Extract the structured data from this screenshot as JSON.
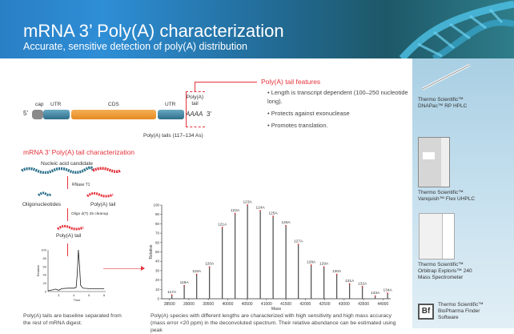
{
  "header": {
    "title": "mRNA 3’ Poly(A) characterization",
    "subtitle": "Accurate, sensitive detection of poly(A) distribution"
  },
  "mrna": {
    "five": "5'",
    "three": "3'",
    "cap": "cap",
    "utr1": "UTR",
    "cds": "CDS",
    "utr2": "UTR",
    "tail_label": "Poly(A) tail",
    "aaaa": "AAAA",
    "tails_caption": "Poly(A) tails (117–134 As)"
  },
  "features": {
    "title": "Poly(A) tail features",
    "items": [
      "Length is transcript dependent (100–250 nucleotide long).",
      "Protects against exonuclease",
      "Promotes translation."
    ]
  },
  "workflow": {
    "title": "mRNA 3’ Poly(A) tail characterization",
    "candidate": "Nucleic acid candidate",
    "rnase": "RNase T1",
    "oligos": "Oligonucleotides",
    "polya1": "Poly(A) tail",
    "cleanup": "Oligo d(T) 25 cleanup",
    "polya2": "Poly(A) tail",
    "caption": "Poly(A) tails are baseline separated from the rest of mRNA digest."
  },
  "chromatogram": {
    "xlabel": "Time",
    "ylabel": "Relative",
    "yticks": [
      0,
      20,
      40,
      60,
      80,
      100
    ],
    "xticks": [
      3,
      4,
      5,
      6
    ],
    "xlim": [
      2.3,
      6.1
    ],
    "ylim": [
      0,
      100
    ],
    "points": [
      [
        2.3,
        2
      ],
      [
        2.6,
        4
      ],
      [
        2.8,
        6
      ],
      [
        3.0,
        3
      ],
      [
        3.2,
        7
      ],
      [
        3.6,
        8
      ],
      [
        4.0,
        8
      ],
      [
        4.15,
        10
      ],
      [
        4.22,
        40
      ],
      [
        4.3,
        100
      ],
      [
        4.38,
        60
      ],
      [
        4.45,
        15
      ],
      [
        4.6,
        8
      ],
      [
        5.0,
        7
      ],
      [
        6.0,
        7
      ]
    ]
  },
  "chart_data": {
    "type": "bar",
    "title": "",
    "xlabel": "Mass",
    "ylabel": "Relative",
    "xlim": [
      38300,
      44200
    ],
    "ylim": [
      0,
      100
    ],
    "xticks": [
      38500,
      39000,
      39500,
      40000,
      40500,
      41000,
      41500,
      42000,
      42500,
      43000,
      43500,
      44000
    ],
    "yticks": [
      0,
      10,
      20,
      30,
      40,
      50,
      60,
      70,
      80,
      90,
      100
    ],
    "peaks": [
      {
        "label": "117A",
        "mass": 38560,
        "value": 4
      },
      {
        "label": "118A",
        "mass": 38880,
        "value": 14
      },
      {
        "label": "119A",
        "mass": 39200,
        "value": 26
      },
      {
        "label": "120A",
        "mass": 39530,
        "value": 34
      },
      {
        "label": "121A",
        "mass": 39860,
        "value": 76
      },
      {
        "label": "122A",
        "mass": 40190,
        "value": 91
      },
      {
        "label": "123A",
        "mass": 40510,
        "value": 100
      },
      {
        "label": "124A",
        "mass": 40840,
        "value": 94
      },
      {
        "label": "125A",
        "mass": 41170,
        "value": 88
      },
      {
        "label": "126A",
        "mass": 41500,
        "value": 78
      },
      {
        "label": "127A",
        "mass": 41820,
        "value": 58
      },
      {
        "label": "128A",
        "mass": 42150,
        "value": 36
      },
      {
        "label": "129A",
        "mass": 42480,
        "value": 34
      },
      {
        "label": "130A",
        "mass": 42810,
        "value": 26
      },
      {
        "label": "131A",
        "mass": 43140,
        "value": 16
      },
      {
        "label": "132A",
        "mass": 43470,
        "value": 13
      },
      {
        "label": "133A",
        "mass": 43800,
        "value": 3
      },
      {
        "label": "134A",
        "mass": 44120,
        "value": 6
      }
    ]
  },
  "spectrum_caption": "Poly(A) species with different lengths are characterized with high sensitivity and high mass accuracy (mass error <20 ppm) in the deconvoluted spectrum. Their relative abundance can be estimated using peak",
  "products": [
    {
      "line1": "Thermo Scientific™",
      "line2": "DNAPac™ RP HPLC"
    },
    {
      "line1": "Thermo Scientific™",
      "line2": "Vanquish™ Flex UHPLC"
    },
    {
      "line1": "Thermo Scientific™",
      "line2": "Orbitrap Exploris™ 240",
      "line3": "Mass Spectrometer"
    },
    {
      "line1": "Thermo Scientific™",
      "line2": "BioPharma Finder",
      "line3": "Software",
      "logo": "Bf"
    }
  ],
  "colors": {
    "accent": "#e5323b",
    "utr": "#3d7f99",
    "cds": "#f0962a",
    "header": "#236e9c"
  }
}
